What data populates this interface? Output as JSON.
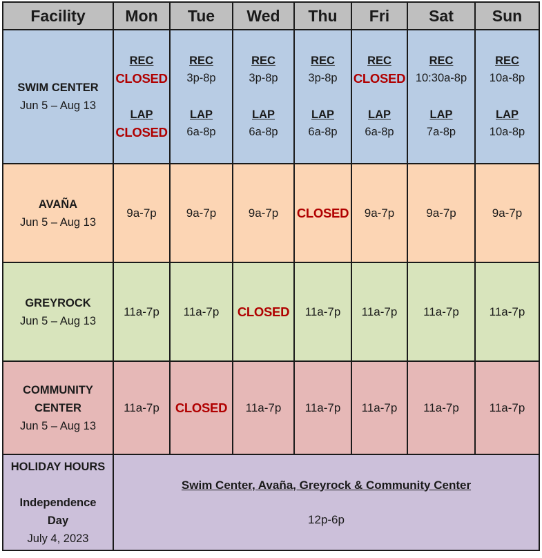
{
  "header": {
    "facility": "Facility",
    "days": [
      "Mon",
      "Tue",
      "Wed",
      "Thu",
      "Fri",
      "Sat",
      "Sun"
    ]
  },
  "swim": {
    "name": "SWIM CENTER",
    "dates": "Jun 5 – Aug 13",
    "rec_label": "REC",
    "lap_label": "LAP",
    "rec": [
      "CLOSED",
      "3p-8p",
      "3p-8p",
      "3p-8p",
      "CLOSED",
      "10:30a-8p",
      "10a-8p"
    ],
    "lap": [
      "CLOSED",
      "6a-8p",
      "6a-8p",
      "6a-8p",
      "6a-8p",
      "7a-8p",
      "10a-8p"
    ]
  },
  "avana": {
    "name": "AVAÑA",
    "dates": "Jun 5 – Aug 13",
    "hours": [
      "9a-7p",
      "9a-7p",
      "9a-7p",
      "CLOSED",
      "9a-7p",
      "9a-7p",
      "9a-7p"
    ]
  },
  "greyrock": {
    "name": "GREYROCK",
    "dates": "Jun 5 – Aug 13",
    "hours": [
      "11a-7p",
      "11a-7p",
      "CLOSED",
      "11a-7p",
      "11a-7p",
      "11a-7p",
      "11a-7p"
    ]
  },
  "community": {
    "name_line1": "COMMUNITY",
    "name_line2": "CENTER",
    "dates": "Jun 5 – Aug 13",
    "hours": [
      "11a-7p",
      "CLOSED",
      "11a-7p",
      "11a-7p",
      "11a-7p",
      "11a-7p",
      "11a-7p"
    ]
  },
  "holiday": {
    "title": "HOLIDAY HOURS",
    "event_line1": "Independence",
    "event_line2": "Day",
    "date": "July 4, 2023",
    "facilities": "Swim Center, Avaña, Greyrock & Community Center",
    "hours": "12p-6p"
  },
  "colors": {
    "header": "#bfbfbf",
    "swim": "#b8cce4",
    "avana": "#fcd5b4",
    "greyrock": "#d8e4bc",
    "community": "#e6b8b7",
    "holiday": "#ccc0da",
    "closed_text": "#b00000"
  }
}
